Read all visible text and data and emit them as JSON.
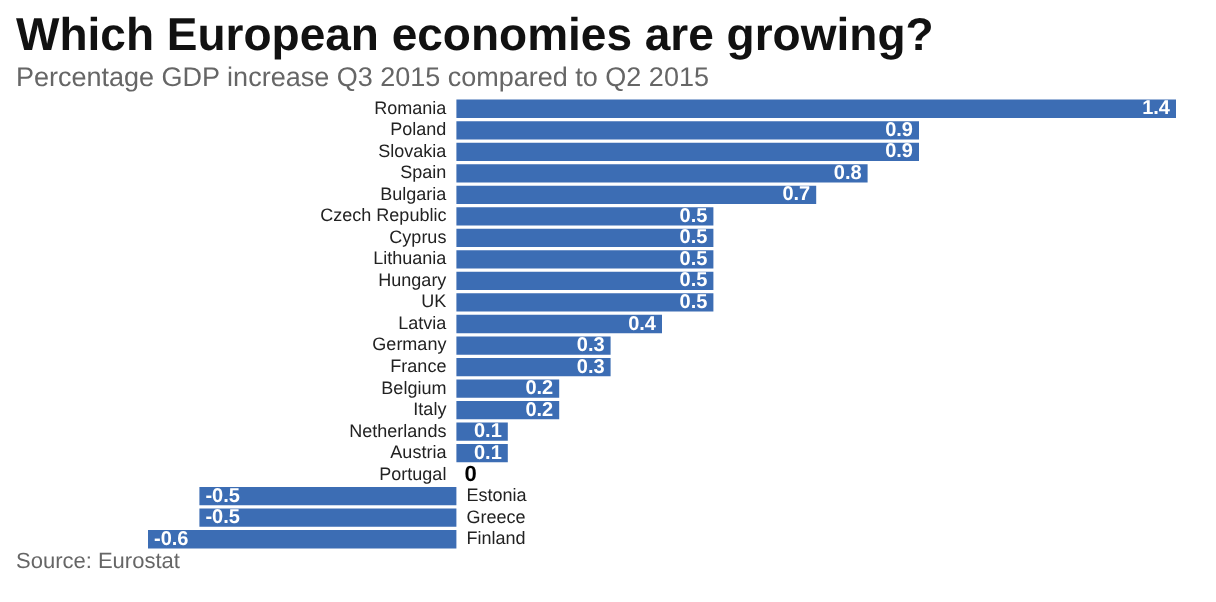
{
  "chart_data": {
    "type": "bar",
    "orientation": "horizontal",
    "title": "Which European economies are growing?",
    "subtitle": "Percentage GDP increase Q3 2015 compared to Q2 2015",
    "categories": [
      "Romania",
      "Poland",
      "Slovakia",
      "Spain",
      "Bulgaria",
      "Czech Republic",
      "Cyprus",
      "Lithuania",
      "Hungary",
      "UK",
      "Latvia",
      "Germany",
      "France",
      "Belgium",
      "Italy",
      "Netherlands",
      "Austria",
      "Portugal",
      "Estonia",
      "Greece",
      "Finland"
    ],
    "values": [
      1.4,
      0.9,
      0.9,
      0.8,
      0.7,
      0.5,
      0.5,
      0.5,
      0.5,
      0.5,
      0.4,
      0.3,
      0.3,
      0.2,
      0.2,
      0.1,
      0.1,
      0,
      -0.5,
      -0.5,
      -0.6
    ],
    "color": "#3c6db4",
    "data_labels": true,
    "annotations": [
      "Source: Eurostat"
    ]
  }
}
